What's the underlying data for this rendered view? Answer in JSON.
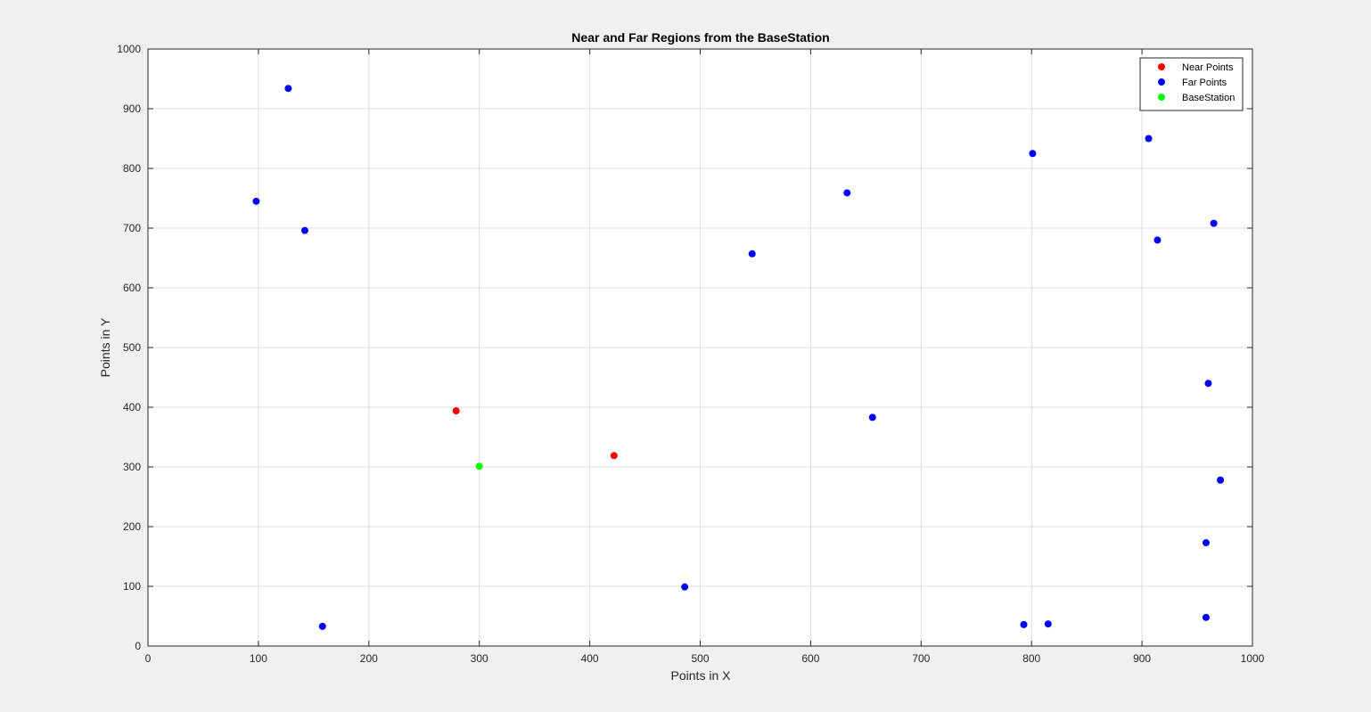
{
  "chart_data": {
    "type": "scatter",
    "title": "Near and Far Regions from the BaseStation",
    "xlabel": "Points in X",
    "ylabel": "Points in Y",
    "xlim": [
      0,
      1000
    ],
    "ylim": [
      0,
      1000
    ],
    "xticks": [
      0,
      100,
      200,
      300,
      400,
      500,
      600,
      700,
      800,
      900,
      1000
    ],
    "yticks": [
      0,
      100,
      200,
      300,
      400,
      500,
      600,
      700,
      800,
      900,
      1000
    ],
    "grid": true,
    "legend_position": "top-right",
    "series": [
      {
        "name": "Near Points",
        "color": "#ff0000",
        "points": [
          {
            "x": 279,
            "y": 394
          },
          {
            "x": 422,
            "y": 319
          }
        ]
      },
      {
        "name": "Far Points",
        "color": "#0000ff",
        "points": [
          {
            "x": 127,
            "y": 934
          },
          {
            "x": 98,
            "y": 745
          },
          {
            "x": 142,
            "y": 696
          },
          {
            "x": 158,
            "y": 33
          },
          {
            "x": 486,
            "y": 99
          },
          {
            "x": 547,
            "y": 657
          },
          {
            "x": 633,
            "y": 759
          },
          {
            "x": 656,
            "y": 383
          },
          {
            "x": 801,
            "y": 825
          },
          {
            "x": 793,
            "y": 36
          },
          {
            "x": 815,
            "y": 37
          },
          {
            "x": 906,
            "y": 850
          },
          {
            "x": 914,
            "y": 680
          },
          {
            "x": 965,
            "y": 708
          },
          {
            "x": 960,
            "y": 440
          },
          {
            "x": 971,
            "y": 278
          },
          {
            "x": 958,
            "y": 173
          },
          {
            "x": 958,
            "y": 48
          }
        ]
      },
      {
        "name": "BaseStation",
        "color": "#00ff00",
        "points": [
          {
            "x": 300,
            "y": 301
          }
        ]
      }
    ]
  }
}
